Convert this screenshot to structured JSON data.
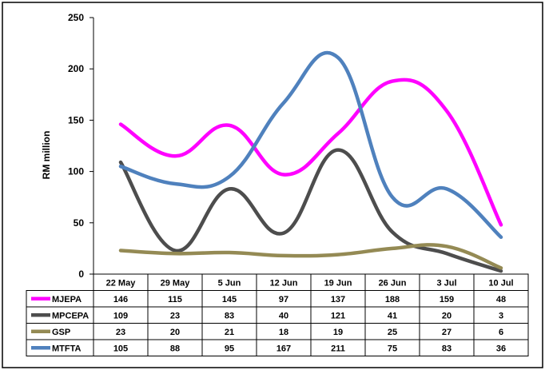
{
  "chart_data": {
    "type": "line",
    "ylabel": "RM million",
    "ylim": [
      0,
      250
    ],
    "yticks": [
      "0",
      "50",
      "100",
      "150",
      "200",
      "250"
    ],
    "categories": [
      "22 May",
      "29 May",
      "5 Jun",
      "12 Jun",
      "19 Jun",
      "26 Jun",
      "3 Jul",
      "10 Jul"
    ],
    "series": [
      {
        "name": "MJEPA",
        "color": "#ff00ff",
        "values": [
          146,
          115,
          145,
          97,
          137,
          188,
          159,
          48
        ]
      },
      {
        "name": "MPCEPA",
        "color": "#4d4d4d",
        "values": [
          109,
          23,
          83,
          40,
          121,
          41,
          20,
          3
        ]
      },
      {
        "name": "GSP",
        "color": "#948a54",
        "values": [
          23,
          20,
          21,
          18,
          19,
          25,
          27,
          6
        ]
      },
      {
        "name": "MTFTA",
        "color": "#4f81bd",
        "values": [
          105,
          88,
          95,
          167,
          211,
          75,
          83,
          36
        ]
      }
    ],
    "legend_placement": "data-table-left",
    "grid": false
  }
}
